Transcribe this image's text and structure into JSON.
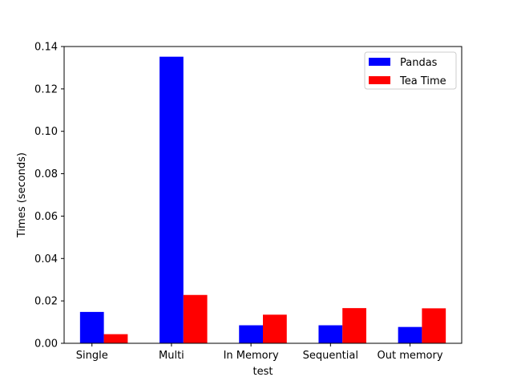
{
  "chart_data": {
    "type": "bar",
    "title": "",
    "xlabel": "test",
    "ylabel": "Times (seconds)",
    "categories": [
      "Single",
      "Multi",
      "In Memory",
      "Sequential",
      "Out memory"
    ],
    "series": [
      {
        "name": "Pandas",
        "color": "#0000ff",
        "values": [
          0.0148,
          0.1352,
          0.0085,
          0.0085,
          0.0077
        ]
      },
      {
        "name": "Tea Time",
        "color": "#ff0000",
        "values": [
          0.0043,
          0.0228,
          0.0135,
          0.0166,
          0.0165
        ]
      }
    ],
    "ylim": [
      0,
      0.14
    ],
    "yticks": [
      "0.00",
      "0.02",
      "0.04",
      "0.06",
      "0.08",
      "0.10",
      "0.12",
      "0.14"
    ],
    "grid": false,
    "legend_position": "top-right"
  }
}
